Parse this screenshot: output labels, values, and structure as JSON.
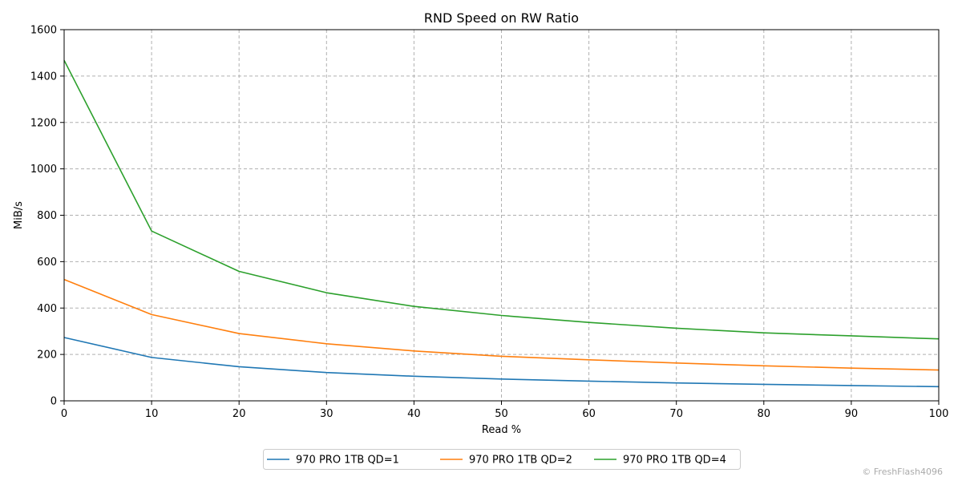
{
  "chart_data": {
    "type": "line",
    "title": "RND Speed on RW Ratio",
    "xlabel": "Read %",
    "ylabel": "MiB/s",
    "xlim": [
      0,
      100
    ],
    "ylim": [
      0,
      1600
    ],
    "x": [
      0,
      10,
      20,
      30,
      40,
      50,
      60,
      70,
      80,
      90,
      100
    ],
    "xticks": [
      "0",
      "10",
      "20",
      "30",
      "40",
      "50",
      "60",
      "70",
      "80",
      "90",
      "100"
    ],
    "yticks": [
      "0",
      "200",
      "400",
      "600",
      "800",
      "1000",
      "1200",
      "1400",
      "1600"
    ],
    "grid": true,
    "legend_position": "bottom-center",
    "series": [
      {
        "name": "970 PRO 1TB QD=1",
        "color": "#1f77b4",
        "values": [
          273,
          187,
          147,
          122,
          106,
          94,
          85,
          77,
          71,
          66,
          61
        ]
      },
      {
        "name": "970 PRO 1TB QD=2",
        "color": "#ff7f0e",
        "values": [
          523,
          372,
          290,
          246,
          215,
          192,
          177,
          163,
          151,
          141,
          133
        ]
      },
      {
        "name": "970 PRO 1TB QD=4",
        "color": "#2ca02c",
        "values": [
          1468,
          732,
          558,
          466,
          407,
          368,
          338,
          313,
          293,
          280,
          267
        ]
      }
    ]
  },
  "copyright": "© FreshFlash4096"
}
